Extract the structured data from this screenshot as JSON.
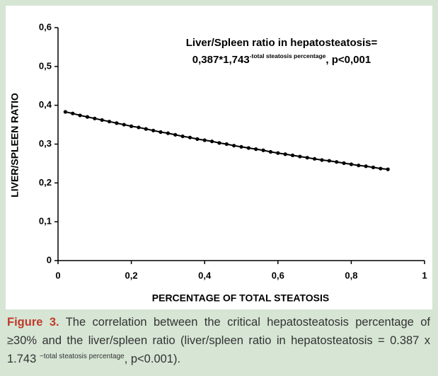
{
  "chart_data": {
    "type": "line",
    "annotation": {
      "line1": "Liver/Spleen ratio in hepatosteatosis=",
      "base": "0,387*1,743",
      "exponent": "-total steatosis percentage",
      "suffix": ", p<0,001"
    },
    "xlabel": "PERCENTAGE OF TOTAL STEATOSIS",
    "ylabel": "LIVER/SPLEEN RATIO",
    "x": [
      0.02,
      0.04,
      0.06,
      0.08,
      0.1,
      0.12,
      0.14,
      0.16,
      0.18,
      0.2,
      0.22,
      0.24,
      0.26,
      0.28,
      0.3,
      0.32,
      0.34,
      0.36,
      0.38,
      0.4,
      0.42,
      0.44,
      0.46,
      0.48,
      0.5,
      0.52,
      0.54,
      0.56,
      0.58,
      0.6,
      0.62,
      0.64,
      0.66,
      0.68,
      0.7,
      0.72,
      0.74,
      0.76,
      0.78,
      0.8,
      0.82,
      0.84,
      0.86,
      0.88,
      0.9
    ],
    "values": [
      0.383,
      0.379,
      0.374,
      0.37,
      0.366,
      0.362,
      0.358,
      0.354,
      0.35,
      0.346,
      0.343,
      0.339,
      0.335,
      0.331,
      0.328,
      0.324,
      0.32,
      0.317,
      0.313,
      0.31,
      0.307,
      0.303,
      0.3,
      0.296,
      0.293,
      0.29,
      0.287,
      0.284,
      0.28,
      0.277,
      0.274,
      0.271,
      0.268,
      0.265,
      0.262,
      0.259,
      0.257,
      0.254,
      0.251,
      0.248,
      0.245,
      0.243,
      0.24,
      0.237,
      0.235
    ],
    "color": "#000000",
    "xlim": [
      0,
      1
    ],
    "xticks": [
      0,
      {
        "value": 0.2,
        "label": "0,2"
      },
      {
        "value": 0.4,
        "label": "0,4"
      },
      {
        "value": 0.6,
        "label": "0,6"
      },
      {
        "value": 0.8,
        "label": "0,8"
      },
      1
    ],
    "ylim": [
      0,
      0.6
    ],
    "yticks": [
      0,
      {
        "value": 0.1,
        "label": "0,1"
      },
      {
        "value": 0.2,
        "label": "0,2"
      },
      {
        "value": 0.3,
        "label": "0,3"
      },
      {
        "value": 0.4,
        "label": "0,4"
      },
      {
        "value": 0.5,
        "label": "0,5"
      },
      {
        "value": 0.6,
        "label": "0,6"
      }
    ],
    "grid": false
  },
  "caption": {
    "label": "Figure 3.",
    "text": "The correlation between the critical hepatosteatosis percentage of ≥30% and the liver/spleen ratio (liver/spleen ratio in hepatosteatosis = 0.387 x 1.743",
    "exponent": "−total steatosis percentage",
    "end": ", p<0.001)."
  }
}
